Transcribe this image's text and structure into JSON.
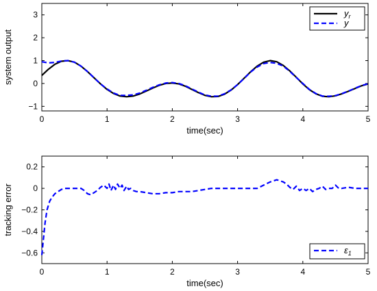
{
  "chart_data": [
    {
      "type": "line",
      "xlabel": "time(sec)",
      "ylabel": "system output",
      "xlim": [
        0,
        5
      ],
      "ylim": [
        -1.2,
        3.5
      ],
      "xticks": [
        "0",
        "1",
        "2",
        "3",
        "4",
        "5"
      ],
      "xtick_values": [
        0,
        1,
        2,
        3,
        4,
        5
      ],
      "yticks": [
        "−1",
        "0",
        "1",
        "2",
        "3"
      ],
      "ytick_values": [
        -1,
        0,
        1,
        2,
        3
      ],
      "grid": false,
      "legend_position": "top-right",
      "series": [
        {
          "name": "y_r",
          "legend_label": "y",
          "legend_sub": "r",
          "color": "#000000",
          "style": "solid",
          "x": [
            0,
            0.1,
            0.2,
            0.3,
            0.4,
            0.5,
            0.6,
            0.7,
            0.8,
            0.9,
            1.0,
            1.1,
            1.2,
            1.3,
            1.4,
            1.5,
            1.6,
            1.7,
            1.8,
            1.9,
            2.0,
            2.1,
            2.2,
            2.3,
            2.4,
            2.5,
            2.6,
            2.7,
            2.8,
            2.9,
            3.0,
            3.1,
            3.2,
            3.3,
            3.4,
            3.5,
            3.6,
            3.7,
            3.8,
            3.9,
            4.0,
            4.1,
            4.2,
            4.3,
            4.4,
            4.5,
            4.6,
            4.7,
            4.8,
            4.9,
            5.0
          ],
          "y": [
            0.35,
            0.62,
            0.84,
            0.97,
            1.0,
            0.93,
            0.76,
            0.52,
            0.25,
            -0.02,
            -0.26,
            -0.44,
            -0.55,
            -0.58,
            -0.55,
            -0.46,
            -0.33,
            -0.2,
            -0.08,
            0.0,
            0.02,
            -0.02,
            -0.12,
            -0.26,
            -0.4,
            -0.52,
            -0.58,
            -0.57,
            -0.47,
            -0.29,
            -0.05,
            0.23,
            0.51,
            0.76,
            0.93,
            1.0,
            0.95,
            0.79,
            0.55,
            0.27,
            -0.02,
            -0.27,
            -0.45,
            -0.56,
            -0.58,
            -0.54,
            -0.45,
            -0.34,
            -0.22,
            -0.1,
            -0.02
          ]
        },
        {
          "name": "y",
          "legend_label": "y",
          "legend_sub": "",
          "color": "#0000ff",
          "style": "dashed",
          "x": [
            0,
            0.1,
            0.2,
            0.3,
            0.4,
            0.5,
            0.6,
            0.7,
            0.8,
            0.9,
            1.0,
            1.1,
            1.2,
            1.3,
            1.4,
            1.5,
            1.6,
            1.7,
            1.8,
            1.9,
            2.0,
            2.1,
            2.2,
            2.3,
            2.4,
            2.5,
            2.6,
            2.7,
            2.8,
            2.9,
            3.0,
            3.1,
            3.2,
            3.3,
            3.4,
            3.5,
            3.6,
            3.7,
            3.8,
            3.9,
            4.0,
            4.1,
            4.2,
            4.3,
            4.4,
            4.5,
            4.6,
            4.7,
            4.8,
            4.9,
            5.0
          ],
          "y": [
            0.95,
            0.9,
            0.92,
            0.98,
            1.0,
            0.93,
            0.76,
            0.52,
            0.25,
            -0.02,
            -0.24,
            -0.42,
            -0.52,
            -0.52,
            -0.5,
            -0.42,
            -0.3,
            -0.17,
            -0.06,
            0.02,
            0.04,
            0.0,
            -0.1,
            -0.24,
            -0.38,
            -0.5,
            -0.56,
            -0.55,
            -0.45,
            -0.28,
            -0.05,
            0.22,
            0.5,
            0.72,
            0.87,
            0.92,
            0.88,
            0.76,
            0.53,
            0.26,
            0.0,
            -0.26,
            -0.44,
            -0.55,
            -0.56,
            -0.53,
            -0.44,
            -0.33,
            -0.21,
            -0.09,
            -0.01
          ]
        }
      ]
    },
    {
      "type": "line",
      "xlabel": "time(sec)",
      "ylabel": "tracking error",
      "xlim": [
        0,
        5
      ],
      "ylim": [
        -0.7,
        0.3
      ],
      "xticks": [
        "0",
        "1",
        "2",
        "3",
        "4",
        "5"
      ],
      "xtick_values": [
        0,
        1,
        2,
        3,
        4,
        5
      ],
      "yticks": [
        "−0.6",
        "−0.4",
        "−0.2",
        "0",
        "0.2"
      ],
      "ytick_values": [
        -0.6,
        -0.4,
        -0.2,
        0,
        0.2
      ],
      "grid": false,
      "legend_position": "bottom-right",
      "series": [
        {
          "name": "ε_1",
          "legend_label": "ε",
          "legend_sub": "1",
          "color": "#0000ff",
          "style": "dashed",
          "x": [
            0,
            0.02,
            0.05,
            0.08,
            0.12,
            0.16,
            0.2,
            0.25,
            0.3,
            0.35,
            0.4,
            0.5,
            0.6,
            0.65,
            0.7,
            0.75,
            0.8,
            0.85,
            0.9,
            0.95,
            1.0,
            1.03,
            1.06,
            1.1,
            1.13,
            1.16,
            1.2,
            1.23,
            1.26,
            1.3,
            1.33,
            1.36,
            1.4,
            1.45,
            1.5,
            1.6,
            1.7,
            1.8,
            1.9,
            2.0,
            2.1,
            2.2,
            2.3,
            2.4,
            2.5,
            2.6,
            2.7,
            2.8,
            2.9,
            3.0,
            3.1,
            3.2,
            3.3,
            3.4,
            3.5,
            3.6,
            3.7,
            3.75,
            3.8,
            3.85,
            3.9,
            3.95,
            4.0,
            4.05,
            4.1,
            4.15,
            4.2,
            4.25,
            4.3,
            4.35,
            4.4,
            4.45,
            4.5,
            4.55,
            4.6,
            4.7,
            4.8,
            4.9,
            5.0
          ],
          "y": [
            -0.62,
            -0.5,
            -0.32,
            -0.2,
            -0.12,
            -0.08,
            -0.05,
            -0.03,
            -0.01,
            0.0,
            0.0,
            0.0,
            0.0,
            -0.02,
            -0.05,
            -0.06,
            -0.04,
            -0.02,
            0.01,
            0.03,
            0.0,
            0.04,
            -0.02,
            0.03,
            -0.01,
            0.04,
            0.0,
            0.03,
            -0.02,
            0.02,
            -0.01,
            0.0,
            -0.02,
            -0.03,
            -0.03,
            -0.04,
            -0.05,
            -0.05,
            -0.04,
            -0.04,
            -0.03,
            -0.03,
            -0.03,
            -0.02,
            -0.01,
            0.0,
            0.0,
            0.0,
            0.0,
            0.0,
            0.0,
            0.0,
            0.0,
            0.03,
            0.06,
            0.08,
            0.06,
            0.04,
            0.01,
            -0.01,
            0.02,
            -0.02,
            0.0,
            -0.02,
            0.0,
            -0.03,
            -0.01,
            0.0,
            0.02,
            -0.01,
            0.0,
            0.0,
            0.03,
            0.0,
            0.0,
            0.01,
            0.0,
            0.0,
            0.0
          ]
        }
      ]
    }
  ]
}
